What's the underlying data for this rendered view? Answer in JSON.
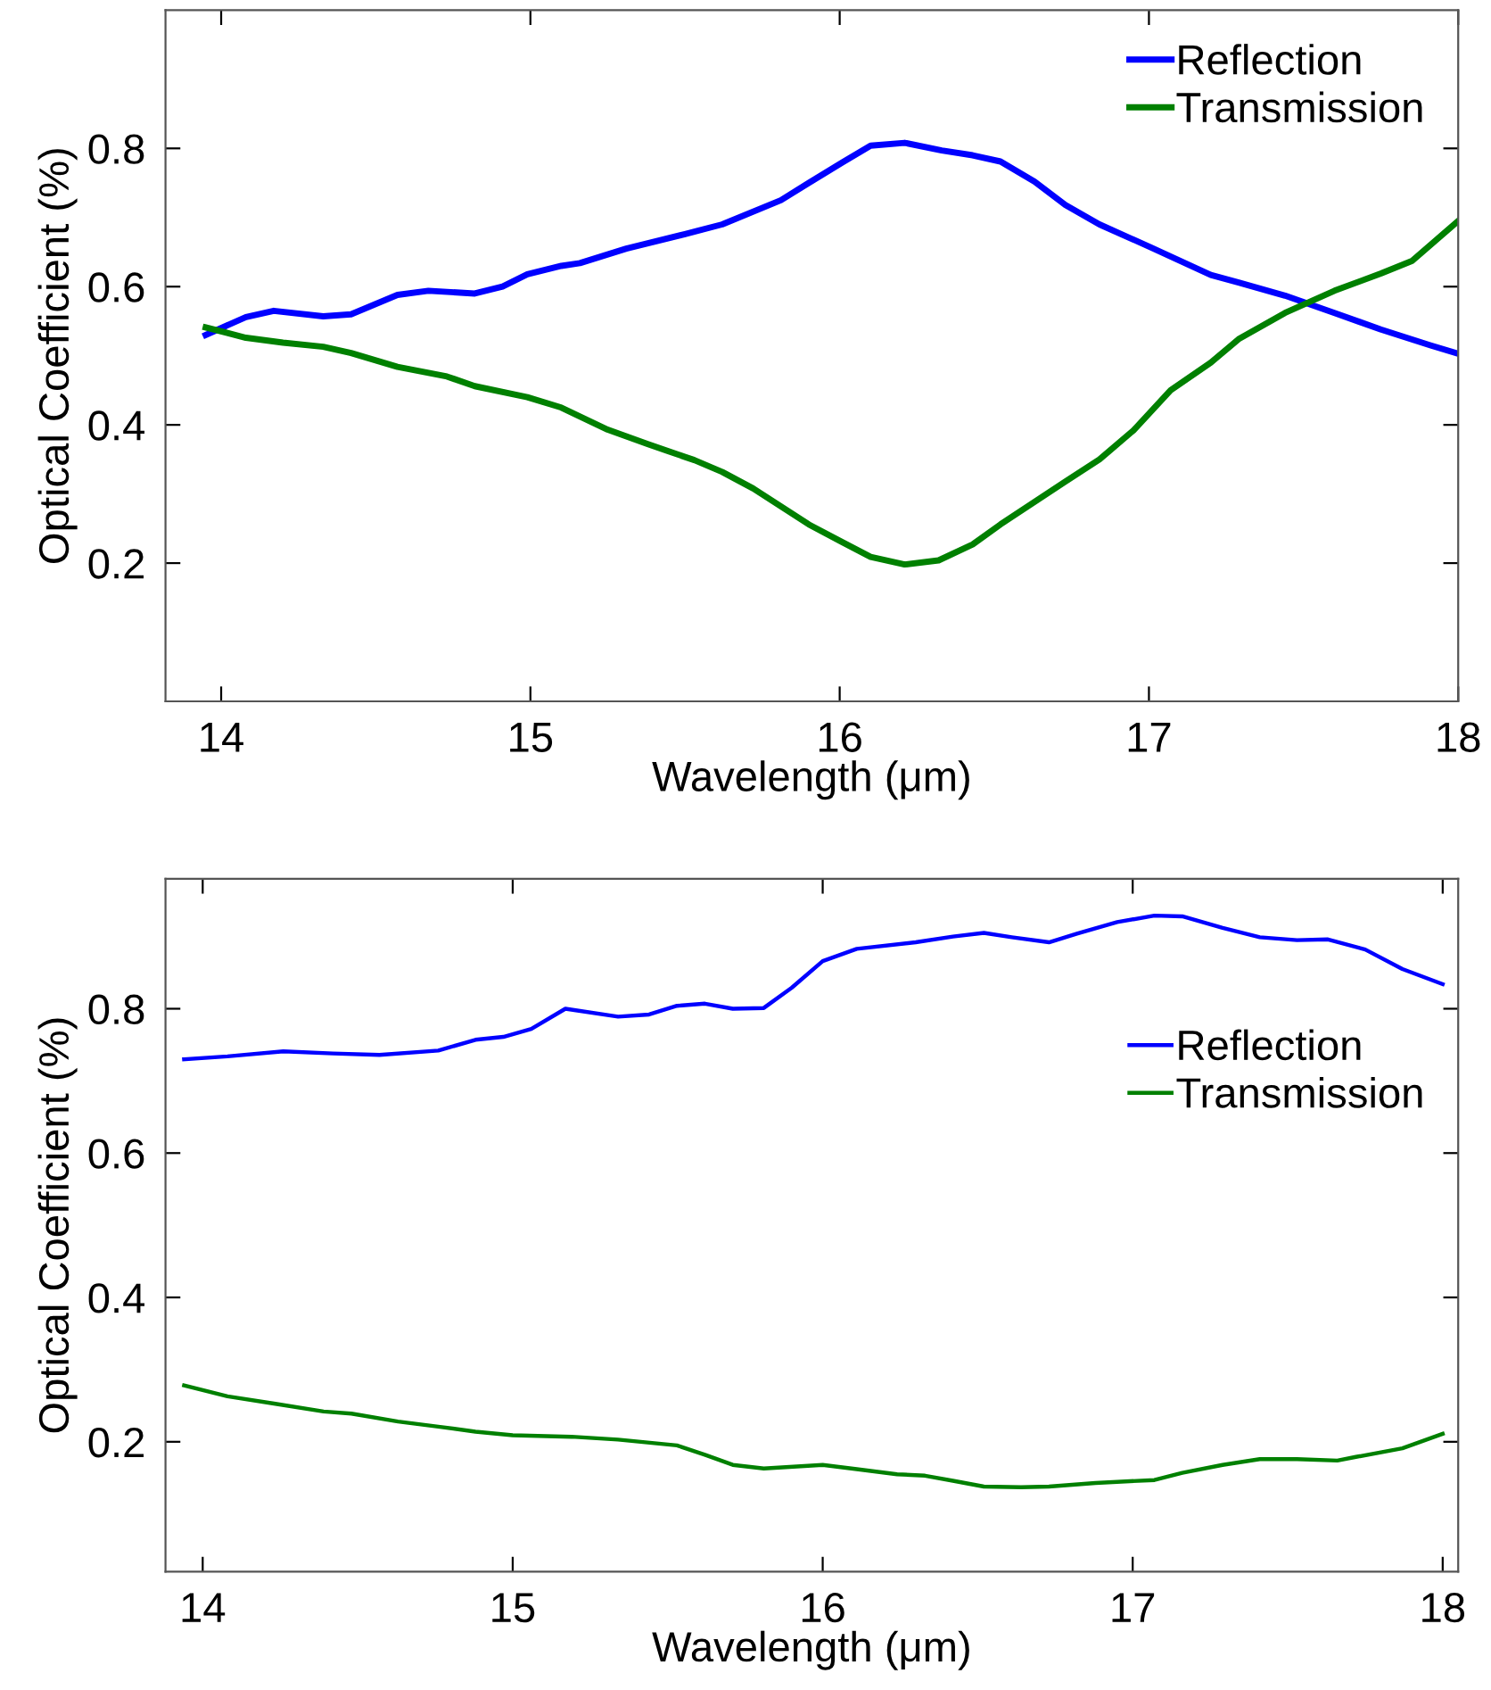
{
  "chart_data": [
    {
      "type": "line",
      "xlabel": "Wavelength (μm)",
      "ylabel": "Optical Coefficient (%)",
      "xlim": [
        13.82,
        18
      ],
      "ylim": [
        0,
        1
      ],
      "xticks": [
        14,
        15,
        16,
        17,
        18
      ],
      "yticks": [
        0.2,
        0.4,
        0.6,
        0.8
      ],
      "grid": false,
      "legend": "top right",
      "line_style": "solid",
      "marker": "none",
      "series": [
        {
          "name": "Reflection",
          "color": "#0000ff",
          "x": [
            13.95,
            14.08,
            14.17,
            14.33,
            14.42,
            14.57,
            14.67,
            14.82,
            14.91,
            14.99,
            15.1,
            15.16,
            15.31,
            15.5,
            15.62,
            15.81,
            15.9,
            16.01,
            16.1,
            16.21,
            16.33,
            16.43,
            16.52,
            16.63,
            16.73,
            16.84,
            17.01,
            17.2,
            17.29,
            17.44,
            17.6,
            17.75,
            17.91,
            18.0
          ],
          "values": [
            0.53,
            0.556,
            0.565,
            0.557,
            0.56,
            0.588,
            0.594,
            0.59,
            0.6,
            0.618,
            0.63,
            0.634,
            0.655,
            0.676,
            0.69,
            0.725,
            0.75,
            0.78,
            0.804,
            0.808,
            0.797,
            0.79,
            0.781,
            0.752,
            0.718,
            0.69,
            0.656,
            0.617,
            0.606,
            0.587,
            0.562,
            0.538,
            0.515,
            0.503
          ]
        },
        {
          "name": "Transmission",
          "color": "#008000",
          "x": [
            13.95,
            14.08,
            14.2,
            14.33,
            14.42,
            14.57,
            14.73,
            14.82,
            14.99,
            15.1,
            15.25,
            15.38,
            15.53,
            15.62,
            15.72,
            15.9,
            16.01,
            16.1,
            16.21,
            16.32,
            16.43,
            16.52,
            16.73,
            16.84,
            16.95,
            17.07,
            17.2,
            17.29,
            17.44,
            17.6,
            17.75,
            17.85,
            18.0
          ],
          "values": [
            0.541,
            0.526,
            0.519,
            0.513,
            0.504,
            0.484,
            0.47,
            0.456,
            0.44,
            0.425,
            0.393,
            0.372,
            0.349,
            0.332,
            0.308,
            0.256,
            0.23,
            0.209,
            0.198,
            0.204,
            0.227,
            0.256,
            0.318,
            0.35,
            0.392,
            0.45,
            0.49,
            0.524,
            0.562,
            0.594,
            0.619,
            0.637,
            0.695
          ]
        }
      ]
    },
    {
      "type": "line",
      "xlabel": "Wavelength (μm)",
      "ylabel": "Optical Coefficient (%)",
      "xlim": [
        13.88,
        18.05
      ],
      "ylim": [
        0.02,
        0.98
      ],
      "xticks": [
        14,
        15,
        16,
        17,
        18
      ],
      "yticks": [
        0.2,
        0.4,
        0.6,
        0.8
      ],
      "grid": false,
      "legend": "right",
      "line_style": "solid",
      "marker": "none",
      "series": [
        {
          "name": "Reflection",
          "color": "#0000ff",
          "x": [
            13.94,
            14.08,
            14.26,
            14.42,
            14.57,
            14.76,
            14.88,
            14.97,
            15.06,
            15.17,
            15.34,
            15.44,
            15.53,
            15.62,
            15.71,
            15.81,
            15.9,
            16.0,
            16.11,
            16.3,
            16.42,
            16.52,
            16.61,
            16.73,
            16.82,
            16.95,
            17.07,
            17.16,
            17.29,
            17.41,
            17.53,
            17.63,
            17.75,
            17.87,
            18.0
          ],
          "values": [
            0.73,
            0.734,
            0.741,
            0.738,
            0.736,
            0.742,
            0.757,
            0.761,
            0.772,
            0.8,
            0.789,
            0.792,
            0.804,
            0.807,
            0.8,
            0.801,
            0.829,
            0.866,
            0.883,
            0.892,
            0.9,
            0.905,
            0.899,
            0.892,
            0.904,
            0.92,
            0.929,
            0.928,
            0.912,
            0.899,
            0.895,
            0.896,
            0.882,
            0.855,
            0.834
          ]
        },
        {
          "name": "Transmission",
          "color": "#008000",
          "x": [
            13.94,
            14.08,
            14.23,
            14.39,
            14.48,
            14.63,
            14.76,
            14.88,
            15.0,
            15.19,
            15.34,
            15.53,
            15.62,
            15.71,
            15.81,
            16.0,
            16.11,
            16.24,
            16.33,
            16.42,
            16.52,
            16.64,
            16.73,
            16.88,
            17.07,
            17.16,
            17.29,
            17.41,
            17.53,
            17.66,
            17.72,
            17.87,
            18.0
          ],
          "values": [
            0.278,
            0.263,
            0.253,
            0.242,
            0.239,
            0.228,
            0.221,
            0.214,
            0.209,
            0.207,
            0.203,
            0.195,
            0.182,
            0.168,
            0.163,
            0.168,
            0.162,
            0.155,
            0.153,
            0.146,
            0.138,
            0.137,
            0.138,
            0.143,
            0.147,
            0.157,
            0.168,
            0.176,
            0.176,
            0.174,
            0.179,
            0.191,
            0.211
          ]
        }
      ]
    }
  ]
}
